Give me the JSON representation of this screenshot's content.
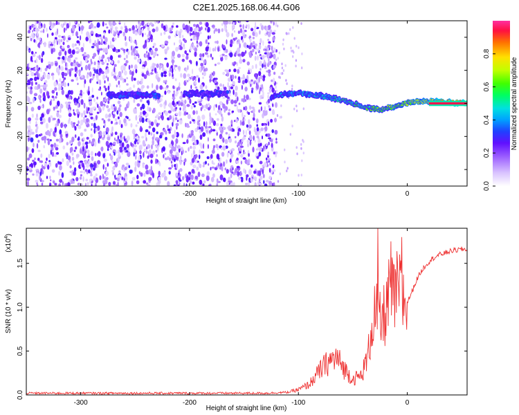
{
  "title": "C2E1.2025.168.06.44.G06",
  "chart_data": [
    {
      "type": "heatmap",
      "xlabel": "Height of straight line (km)",
      "ylabel": "Frequency (Hz)",
      "xlim": [
        -350,
        55
      ],
      "ylim": [
        -50,
        50
      ],
      "xticks": [
        -300,
        -200,
        -100,
        0
      ],
      "yticks": [
        -40,
        -20,
        0,
        20,
        40
      ],
      "colorbar": {
        "label": "Normalized spectral amplitude",
        "range": [
          0,
          1
        ],
        "ticks": [
          "0.0",
          "0.2",
          "0.4",
          "0.6",
          "0.8"
        ]
      },
      "features": {
        "noise_region": [
          -350,
          -120
        ],
        "trace_segments": [
          {
            "x": [
              -275,
              -228
            ],
            "freq": 5,
            "amplitude": 0.3
          },
          {
            "x": [
              -205,
              -165
            ],
            "freq": 6,
            "amplitude": 0.25
          },
          {
            "x": [
              -125,
              55
            ],
            "freq_start": 4,
            "freq_end": 0,
            "amplitude_start": 0.35,
            "amplitude_end": 0.95
          }
        ],
        "outlier_point": {
          "x": -345,
          "freq": -22,
          "amplitude": 0.3
        }
      }
    },
    {
      "type": "line",
      "xlabel": "Height of straight line (km)",
      "ylabel": "SNR (10 * v/v)",
      "scale_label": "(x10",
      "scale_exponent": "4",
      "xlim": [
        -350,
        55
      ],
      "ylim": [
        0,
        1.9
      ],
      "xticks": [
        -300,
        -200,
        -100,
        0
      ],
      "yticks": [
        "0.0",
        "0.5",
        "1.0",
        "1.5"
      ],
      "color": "#ee3030",
      "series": [
        {
          "x": [
            -350,
            -300,
            -200,
            -130,
            -110,
            -100,
            -90,
            -80,
            -72,
            -65,
            -58,
            -50,
            -42,
            -36,
            -33,
            -30,
            -28,
            -24,
            -20,
            -16,
            -12,
            -8,
            -4,
            0,
            5,
            10,
            15,
            20,
            25,
            30,
            35,
            40,
            45,
            50,
            55
          ],
          "values": [
            0.02,
            0.02,
            0.02,
            0.02,
            0.03,
            0.06,
            0.12,
            0.28,
            0.38,
            0.42,
            0.3,
            0.18,
            0.22,
            0.45,
            0.75,
            0.95,
            0.9,
            0.8,
            0.95,
            1.15,
            1.1,
            1.2,
            1.1,
            1.05,
            1.2,
            1.35,
            1.45,
            1.52,
            1.57,
            1.6,
            1.62,
            1.64,
            1.65,
            1.66,
            1.66
          ]
        }
      ]
    }
  ]
}
